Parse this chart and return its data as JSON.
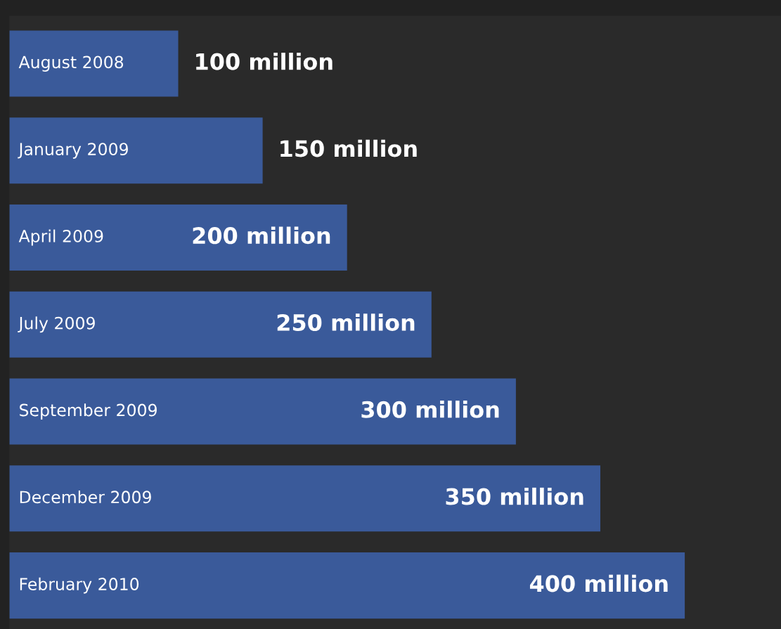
{
  "chart_data": {
    "type": "bar",
    "orientation": "horizontal",
    "categories": [
      "August 2008",
      "January 2009",
      "April 2009",
      "July 2009",
      "September 2009",
      "December 2009",
      "February 2010"
    ],
    "values": [
      100,
      150,
      200,
      250,
      300,
      350,
      400
    ],
    "value_labels": [
      "100 million",
      "150 million",
      "200 million",
      "250 million",
      "300 million",
      "350 million",
      "400 million"
    ],
    "color": "#3a5a9a",
    "xlim": [
      0,
      457
    ]
  }
}
